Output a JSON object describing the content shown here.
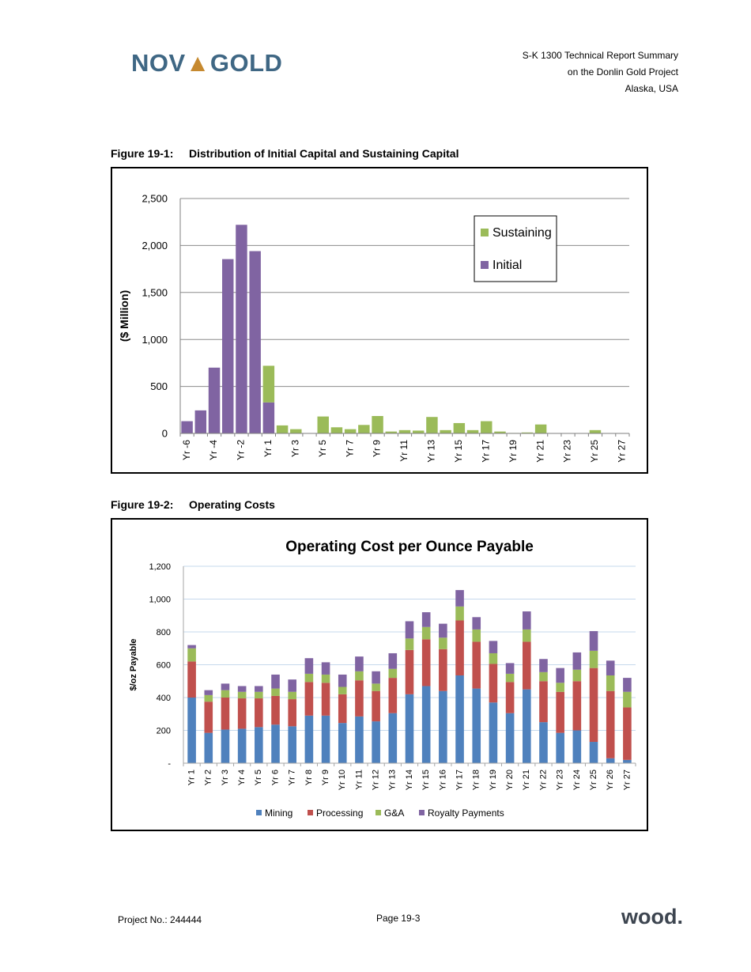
{
  "header": {
    "logo": "NOVAGOLD",
    "line1": "S-K 1300 Technical Report Summary",
    "line2": "on the Donlin Gold Project",
    "line3": "Alaska, USA"
  },
  "figure1": {
    "label": "Figure 19-1:",
    "caption": "Distribution of Initial Capital and Sustaining Capital"
  },
  "figure2": {
    "label": "Figure 19-2:",
    "caption": "Operating Costs"
  },
  "footer": {
    "project": "Project No.: 244444",
    "page": "Page 19-3",
    "brand": "wood."
  },
  "chart_data": [
    {
      "type": "bar",
      "stacked": true,
      "ylabel": "($ Million)",
      "ylim": [
        0,
        2500
      ],
      "yticks": [
        0,
        500,
        1000,
        1500,
        2000,
        2500
      ],
      "ytick_labels": [
        "0",
        "500",
        "1,000",
        "1,500",
        "2,000",
        "2,500"
      ],
      "grid": true,
      "legend_position": "top-right",
      "categories": [
        "Yr -6",
        "Yr -5",
        "Yr -4",
        "Yr -3",
        "Yr -2",
        "Yr -1",
        "Yr 1",
        "Yr 2",
        "Yr 3",
        "Yr 4",
        "Yr 5",
        "Yr 6",
        "Yr 7",
        "Yr 8",
        "Yr 9",
        "Yr 10",
        "Yr 11",
        "Yr 12",
        "Yr 13",
        "Yr 14",
        "Yr 15",
        "Yr 16",
        "Yr 17",
        "Yr 18",
        "Yr 19",
        "Yr 20",
        "Yr 21",
        "Yr 22",
        "Yr 23",
        "Yr 24",
        "Yr 25",
        "Yr 26",
        "Yr 27"
      ],
      "visible_tick_labels": [
        "Yr -6",
        "Yr -4",
        "Yr -2",
        "Yr 1",
        "Yr 3",
        "Yr 5",
        "Yr 7",
        "Yr 9",
        "Yr 11",
        "Yr 13",
        "Yr 15",
        "Yr 17",
        "Yr 19",
        "Yr 21",
        "Yr 23",
        "Yr 25",
        "Yr 27"
      ],
      "series": [
        {
          "name": "Initial",
          "color": "#8064a2",
          "values": [
            130,
            245,
            700,
            1855,
            2220,
            1940,
            330,
            0,
            0,
            0,
            0,
            0,
            0,
            0,
            0,
            0,
            0,
            0,
            0,
            0,
            0,
            0,
            0,
            0,
            0,
            0,
            0,
            0,
            0,
            0,
            0,
            0,
            0
          ]
        },
        {
          "name": "Sustaining",
          "color": "#9bbb59",
          "values": [
            0,
            0,
            0,
            0,
            0,
            0,
            390,
            85,
            45,
            0,
            180,
            65,
            45,
            90,
            185,
            20,
            35,
            30,
            175,
            35,
            110,
            35,
            130,
            20,
            5,
            10,
            95,
            0,
            0,
            0,
            35,
            0,
            0
          ]
        }
      ]
    },
    {
      "type": "bar",
      "stacked": true,
      "title": "Operating Cost per Ounce Payable",
      "ylabel": "$/oz Payable",
      "ylim": [
        0,
        1200
      ],
      "yticks": [
        0,
        200,
        400,
        600,
        800,
        1000,
        1200
      ],
      "ytick_labels": [
        "-",
        "200",
        "400",
        "600",
        "800",
        "1,000",
        "1,200"
      ],
      "grid": true,
      "legend_position": "bottom",
      "categories": [
        "Yr 1",
        "Yr 2",
        "Yr 3",
        "Yr 4",
        "Yr 5",
        "Yr 6",
        "Yr 7",
        "Yr 8",
        "Yr 9",
        "Yr 10",
        "Yr 11",
        "Yr 12",
        "Yr 13",
        "Yr 14",
        "Yr 15",
        "Yr 16",
        "Yr 17",
        "Yr 18",
        "Yr 19",
        "Yr 20",
        "Yr 21",
        "Yr 22",
        "Yr 23",
        "Yr 24",
        "Yr 25",
        "Yr 26",
        "Yr 27"
      ],
      "series": [
        {
          "name": "Mining",
          "color": "#4f81bd",
          "values": [
            400,
            185,
            205,
            210,
            220,
            235,
            225,
            290,
            290,
            245,
            285,
            255,
            305,
            420,
            470,
            440,
            535,
            455,
            370,
            305,
            450,
            250,
            185,
            200,
            130,
            30,
            20
          ]
        },
        {
          "name": "Processing",
          "color": "#c0504d",
          "values": [
            220,
            190,
            195,
            185,
            175,
            175,
            165,
            205,
            200,
            175,
            220,
            185,
            215,
            270,
            285,
            255,
            335,
            285,
            235,
            190,
            290,
            250,
            250,
            300,
            450,
            410,
            320
          ]
        },
        {
          "name": "G&A",
          "color": "#9bbb59",
          "values": [
            80,
            40,
            45,
            40,
            40,
            45,
            45,
            50,
            50,
            45,
            55,
            45,
            55,
            70,
            75,
            70,
            85,
            75,
            65,
            50,
            75,
            55,
            55,
            70,
            105,
            95,
            95
          ]
        },
        {
          "name": "Royalty Payments",
          "color": "#8064a2",
          "values": [
            20,
            30,
            40,
            35,
            35,
            85,
            75,
            95,
            75,
            75,
            90,
            75,
            95,
            105,
            90,
            85,
            100,
            75,
            75,
            65,
            110,
            80,
            90,
            105,
            120,
            90,
            85
          ]
        }
      ]
    }
  ]
}
